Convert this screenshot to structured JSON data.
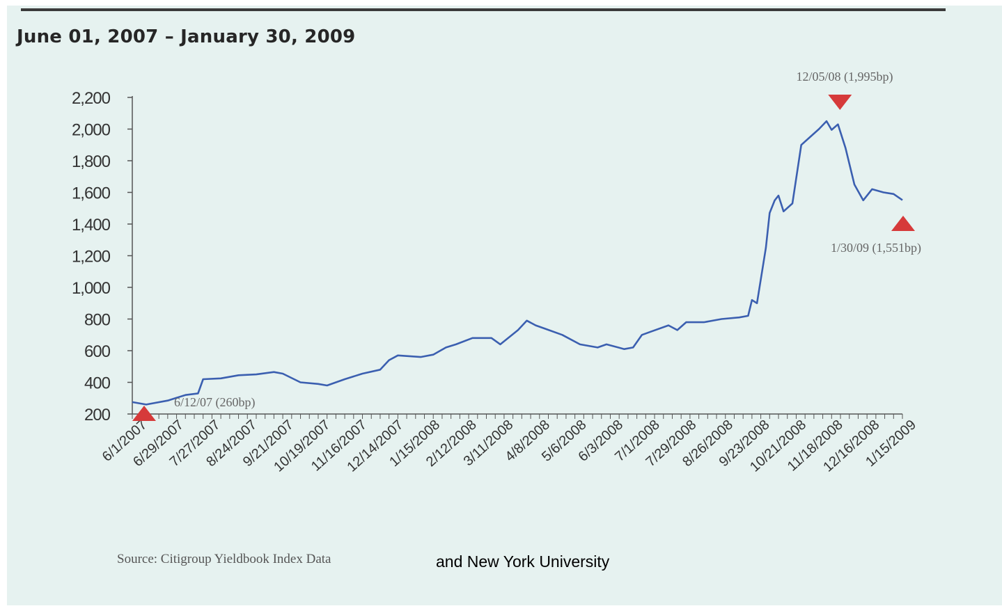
{
  "header": {
    "title": "June 01, 2007 – January 30, 2009"
  },
  "footer": {
    "source": "Source: Citigroup Yieldbook Index Data",
    "source_extra": "and New York University"
  },
  "colors": {
    "line": "#3b5fb0",
    "marker": "#d63a3a",
    "background": "#e6f2f0"
  },
  "chart_data": {
    "type": "line",
    "title": "June 01, 2007 – January 30, 2009",
    "xlabel": "",
    "ylabel": "",
    "ylim": [
      200,
      2200
    ],
    "yticks": [
      2200,
      2000,
      1800,
      1600,
      1400,
      1200,
      1000,
      800,
      600,
      400,
      200
    ],
    "ytick_labels": [
      "2,200",
      "2,000",
      "1,800",
      "1,600",
      "1,400",
      "1,200",
      "1,000",
      "800",
      "600",
      "400",
      "200"
    ],
    "xlim": [
      "2007-06-01",
      "2009-01-30"
    ],
    "xtick_labels": [
      "6/1/2007",
      "6/29/2007",
      "7/27/2007",
      "8/24/2007",
      "9/21/2007",
      "10/19/2007",
      "11/16/2007",
      "12/14/2007",
      "1/15/2008",
      "2/12/2008",
      "3/11/2008",
      "4/8/2008",
      "5/6/2008",
      "6/3/2008",
      "7/1/2008",
      "7/29/2008",
      "8/26/2008",
      "9/23/2008",
      "10/21/2008",
      "11/18/2008",
      "12/16/2008",
      "1/15/2009"
    ],
    "grid": false,
    "legend": "none",
    "series": [
      {
        "x": [
          "2007-06-01",
          "2007-06-12",
          "2007-06-29",
          "2007-07-13",
          "2007-07-23",
          "2007-07-27",
          "2007-08-10",
          "2007-08-24",
          "2007-09-07",
          "2007-09-21",
          "2007-09-28",
          "2007-10-12",
          "2007-10-26",
          "2007-11-02",
          "2007-11-16",
          "2007-11-30",
          "2007-12-14",
          "2007-12-21",
          "2007-12-28",
          "2008-01-15",
          "2008-01-25",
          "2008-02-04",
          "2008-02-12",
          "2008-02-25",
          "2008-03-11",
          "2008-03-18",
          "2008-04-01",
          "2008-04-08",
          "2008-04-15",
          "2008-04-22",
          "2008-05-06",
          "2008-05-20",
          "2008-06-03",
          "2008-06-10",
          "2008-06-24",
          "2008-07-01",
          "2008-07-08",
          "2008-07-15",
          "2008-07-29",
          "2008-08-05",
          "2008-08-12",
          "2008-08-26",
          "2008-09-09",
          "2008-09-23",
          "2008-09-30",
          "2008-10-03",
          "2008-10-07",
          "2008-10-10",
          "2008-10-14",
          "2008-10-17",
          "2008-10-21",
          "2008-10-24",
          "2008-10-28",
          "2008-11-04",
          "2008-11-11",
          "2008-11-18",
          "2008-11-25",
          "2008-12-01",
          "2008-12-05",
          "2008-12-10",
          "2008-12-16",
          "2008-12-23",
          "2008-12-30",
          "2009-01-06",
          "2009-01-15",
          "2009-01-23",
          "2009-01-30"
        ],
        "y": [
          275,
          260,
          285,
          320,
          330,
          420,
          425,
          445,
          450,
          465,
          455,
          400,
          390,
          380,
          420,
          455,
          480,
          540,
          570,
          560,
          575,
          620,
          640,
          680,
          680,
          640,
          730,
          790,
          760,
          740,
          700,
          640,
          620,
          640,
          610,
          620,
          700,
          720,
          760,
          730,
          780,
          780,
          800,
          810,
          820,
          920,
          900,
          1050,
          1250,
          1470,
          1550,
          1580,
          1480,
          1530,
          1900,
          1950,
          2000,
          2050,
          1995,
          2030,
          1880,
          1650,
          1550,
          1620,
          1600,
          1590,
          1551
        ]
      }
    ],
    "annotations": [
      {
        "text": "6/12/07 (260bp)",
        "x": "2007-06-12",
        "y": 260,
        "marker": "up-triangle"
      },
      {
        "text": "12/05/08 (1,995bp)",
        "x": "2008-12-05",
        "y": 1995,
        "marker": "down-triangle"
      },
      {
        "text": "1/30/09 (1,551bp)",
        "x": "2009-01-30",
        "y": 1551,
        "marker": "up-triangle"
      }
    ]
  }
}
